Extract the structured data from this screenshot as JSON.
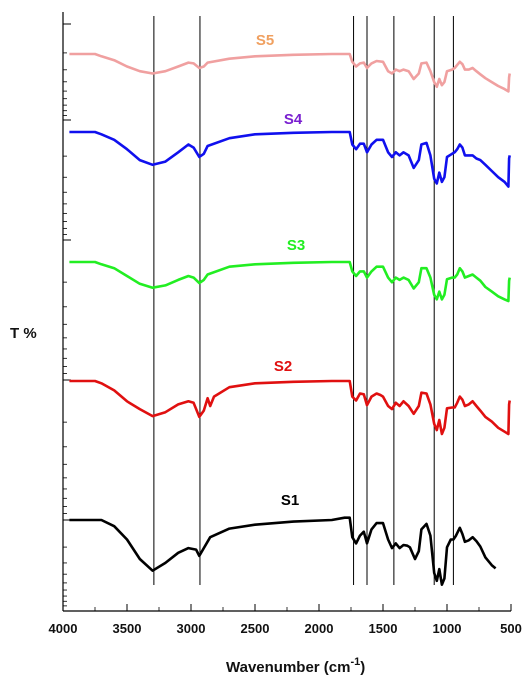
{
  "chart_data": {
    "type": "line",
    "title": "",
    "xlabel": "Wavenumber (cm",
    "xlabel_sup": "-1",
    "xlabel_close": ")",
    "ylabel": "T %",
    "xlim": [
      4000,
      500
    ],
    "x_ticks": [
      4000,
      3500,
      3000,
      2500,
      2000,
      1500,
      1000,
      500
    ],
    "x_tick_labels": [
      "4000",
      "3500",
      "3000",
      "2500",
      "2000",
      "1500",
      "1000",
      "500"
    ],
    "y_axis": "stacked transmittance, no numeric tick labels",
    "reference_lines": [
      3290,
      2930,
      1730,
      1625,
      1415,
      1100,
      950
    ],
    "series": [
      {
        "name": "S1",
        "color": "#000000",
        "offset": 0,
        "points": [
          [
            3950,
            0
          ],
          [
            3700,
            0
          ],
          [
            3600,
            -0.8
          ],
          [
            3500,
            -2.5
          ],
          [
            3400,
            -5
          ],
          [
            3300,
            -6.5
          ],
          [
            3200,
            -5.5
          ],
          [
            3100,
            -4.2
          ],
          [
            3020,
            -3.6
          ],
          [
            2960,
            -3.8
          ],
          [
            2935,
            -4.6
          ],
          [
            2900,
            -3.6
          ],
          [
            2850,
            -2.2
          ],
          [
            2700,
            -1.1
          ],
          [
            2500,
            -0.6
          ],
          [
            2200,
            -0.2
          ],
          [
            1900,
            0
          ],
          [
            1800,
            0.3
          ],
          [
            1760,
            0.3
          ],
          [
            1740,
            -2.2
          ],
          [
            1710,
            -3
          ],
          [
            1680,
            -2
          ],
          [
            1650,
            -1.5
          ],
          [
            1625,
            -3
          ],
          [
            1590,
            -1.2
          ],
          [
            1550,
            -0.4
          ],
          [
            1500,
            -0.4
          ],
          [
            1460,
            -2.5
          ],
          [
            1430,
            -3.6
          ],
          [
            1400,
            -3
          ],
          [
            1370,
            -3.6
          ],
          [
            1340,
            -3.2
          ],
          [
            1310,
            -3.3
          ],
          [
            1290,
            -3.5
          ],
          [
            1250,
            -5
          ],
          [
            1220,
            -4
          ],
          [
            1200,
            -1.2
          ],
          [
            1160,
            -0.5
          ],
          [
            1130,
            -2
          ],
          [
            1100,
            -6.8
          ],
          [
            1080,
            -7.8
          ],
          [
            1060,
            -6.3
          ],
          [
            1040,
            -8.3
          ],
          [
            1020,
            -7.5
          ],
          [
            1000,
            -3.5
          ],
          [
            970,
            -2.5
          ],
          [
            950,
            -2.5
          ],
          [
            930,
            -2
          ],
          [
            900,
            -1
          ],
          [
            880,
            -1.8
          ],
          [
            860,
            -2.8
          ],
          [
            830,
            -2.6
          ],
          [
            800,
            -2.2
          ],
          [
            770,
            -2.7
          ],
          [
            740,
            -3.4
          ],
          [
            700,
            -4.8
          ],
          [
            650,
            -5.8
          ],
          [
            620,
            -6.2
          ]
        ]
      },
      {
        "name": "S2",
        "color": "#e01010",
        "offset": 1,
        "points": [
          [
            3950,
            0
          ],
          [
            3750,
            0
          ],
          [
            3700,
            -0.3
          ],
          [
            3600,
            -1.2
          ],
          [
            3500,
            -2.6
          ],
          [
            3400,
            -3.6
          ],
          [
            3300,
            -4.5
          ],
          [
            3200,
            -4
          ],
          [
            3100,
            -3
          ],
          [
            3020,
            -2.6
          ],
          [
            2980,
            -2.8
          ],
          [
            2935,
            -4.6
          ],
          [
            2900,
            -3.8
          ],
          [
            2870,
            -2.2
          ],
          [
            2850,
            -3.2
          ],
          [
            2820,
            -2
          ],
          [
            2700,
            -0.8
          ],
          [
            2500,
            -0.3
          ],
          [
            2200,
            -0.1
          ],
          [
            1900,
            0
          ],
          [
            1800,
            0
          ],
          [
            1760,
            0
          ],
          [
            1740,
            -2
          ],
          [
            1710,
            -2.5
          ],
          [
            1680,
            -1.6
          ],
          [
            1650,
            -1.7
          ],
          [
            1625,
            -3.1
          ],
          [
            1590,
            -2
          ],
          [
            1550,
            -1.6
          ],
          [
            1520,
            -1.8
          ],
          [
            1500,
            -2
          ],
          [
            1460,
            -3.2
          ],
          [
            1430,
            -3.6
          ],
          [
            1400,
            -2.8
          ],
          [
            1370,
            -3.2
          ],
          [
            1340,
            -2.6
          ],
          [
            1300,
            -3.2
          ],
          [
            1260,
            -4.2
          ],
          [
            1220,
            -3.2
          ],
          [
            1200,
            -1.5
          ],
          [
            1160,
            -1.6
          ],
          [
            1130,
            -3
          ],
          [
            1100,
            -5.5
          ],
          [
            1080,
            -6.3
          ],
          [
            1060,
            -5
          ],
          [
            1040,
            -6.8
          ],
          [
            1020,
            -6
          ],
          [
            1000,
            -3.5
          ],
          [
            960,
            -3.4
          ],
          [
            940,
            -3.4
          ],
          [
            920,
            -2.8
          ],
          [
            900,
            -2
          ],
          [
            880,
            -2.4
          ],
          [
            860,
            -3.2
          ],
          [
            830,
            -3
          ],
          [
            800,
            -2.6
          ],
          [
            770,
            -3.2
          ],
          [
            740,
            -3.8
          ],
          [
            700,
            -4.6
          ],
          [
            650,
            -5.2
          ],
          [
            600,
            -6
          ],
          [
            550,
            -6.5
          ],
          [
            520,
            -6.8
          ],
          [
            515,
            -3
          ],
          [
            510,
            -2.5
          ]
        ]
      },
      {
        "name": "S3",
        "color": "#22ee22",
        "offset": 2,
        "points": [
          [
            3950,
            0
          ],
          [
            3750,
            0
          ],
          [
            3700,
            -0.3
          ],
          [
            3600,
            -0.8
          ],
          [
            3500,
            -1.8
          ],
          [
            3400,
            -2.8
          ],
          [
            3300,
            -3.3
          ],
          [
            3200,
            -3
          ],
          [
            3100,
            -2.3
          ],
          [
            3020,
            -1.8
          ],
          [
            2980,
            -2
          ],
          [
            2935,
            -2.7
          ],
          [
            2900,
            -2.3
          ],
          [
            2870,
            -1.6
          ],
          [
            2700,
            -0.6
          ],
          [
            2500,
            -0.3
          ],
          [
            2200,
            -0.1
          ],
          [
            1900,
            0
          ],
          [
            1800,
            0
          ],
          [
            1760,
            0
          ],
          [
            1740,
            -1.2
          ],
          [
            1710,
            -1.8
          ],
          [
            1680,
            -1.2
          ],
          [
            1650,
            -1.2
          ],
          [
            1625,
            -2
          ],
          [
            1590,
            -1.2
          ],
          [
            1550,
            -0.6
          ],
          [
            1500,
            -0.6
          ],
          [
            1460,
            -2
          ],
          [
            1430,
            -2.6
          ],
          [
            1400,
            -2
          ],
          [
            1370,
            -2.3
          ],
          [
            1340,
            -2
          ],
          [
            1300,
            -2.3
          ],
          [
            1260,
            -3.4
          ],
          [
            1220,
            -2.6
          ],
          [
            1200,
            -0.8
          ],
          [
            1160,
            -0.8
          ],
          [
            1130,
            -2
          ],
          [
            1100,
            -4.2
          ],
          [
            1080,
            -4.8
          ],
          [
            1060,
            -3.8
          ],
          [
            1040,
            -4.8
          ],
          [
            1020,
            -4.2
          ],
          [
            1000,
            -2.2
          ],
          [
            960,
            -2
          ],
          [
            940,
            -2
          ],
          [
            920,
            -1.6
          ],
          [
            900,
            -0.8
          ],
          [
            880,
            -1.2
          ],
          [
            860,
            -2
          ],
          [
            830,
            -1.8
          ],
          [
            800,
            -1.6
          ],
          [
            770,
            -2
          ],
          [
            740,
            -2.4
          ],
          [
            700,
            -3.2
          ],
          [
            650,
            -3.8
          ],
          [
            600,
            -4.4
          ],
          [
            550,
            -4.8
          ],
          [
            520,
            -5
          ],
          [
            515,
            -2.4
          ],
          [
            510,
            -2
          ]
        ]
      },
      {
        "name": "S4",
        "color": "#1010ee",
        "offset": 3,
        "points": [
          [
            3950,
            0
          ],
          [
            3750,
            0
          ],
          [
            3700,
            -0.3
          ],
          [
            3600,
            -1
          ],
          [
            3500,
            -2.2
          ],
          [
            3400,
            -3.6
          ],
          [
            3300,
            -4.2
          ],
          [
            3200,
            -3.8
          ],
          [
            3100,
            -2.6
          ],
          [
            3020,
            -1.6
          ],
          [
            2980,
            -2
          ],
          [
            2935,
            -3.2
          ],
          [
            2900,
            -2.8
          ],
          [
            2870,
            -1.8
          ],
          [
            2700,
            -0.8
          ],
          [
            2500,
            -0.3
          ],
          [
            2200,
            -0.1
          ],
          [
            1900,
            0
          ],
          [
            1800,
            0
          ],
          [
            1760,
            0
          ],
          [
            1740,
            -1.6
          ],
          [
            1710,
            -2.2
          ],
          [
            1680,
            -1.5
          ],
          [
            1650,
            -1.5
          ],
          [
            1625,
            -2.6
          ],
          [
            1590,
            -1.6
          ],
          [
            1550,
            -1
          ],
          [
            1500,
            -1
          ],
          [
            1460,
            -2.6
          ],
          [
            1430,
            -3.2
          ],
          [
            1400,
            -2.6
          ],
          [
            1370,
            -3
          ],
          [
            1340,
            -2.6
          ],
          [
            1300,
            -3
          ],
          [
            1260,
            -4.6
          ],
          [
            1220,
            -3.6
          ],
          [
            1200,
            -1.6
          ],
          [
            1160,
            -1.4
          ],
          [
            1130,
            -3
          ],
          [
            1100,
            -6
          ],
          [
            1080,
            -6.6
          ],
          [
            1060,
            -5.2
          ],
          [
            1040,
            -6.4
          ],
          [
            1020,
            -5.8
          ],
          [
            1000,
            -3.2
          ],
          [
            960,
            -2.8
          ],
          [
            940,
            -2.6
          ],
          [
            920,
            -2.2
          ],
          [
            900,
            -1.6
          ],
          [
            880,
            -2
          ],
          [
            860,
            -3
          ],
          [
            830,
            -3
          ],
          [
            800,
            -3
          ],
          [
            770,
            -3.4
          ],
          [
            740,
            -3.6
          ],
          [
            700,
            -4.2
          ],
          [
            650,
            -5
          ],
          [
            600,
            -5.8
          ],
          [
            550,
            -6.4
          ],
          [
            520,
            -7
          ],
          [
            515,
            -3.4
          ],
          [
            510,
            -3
          ]
        ]
      },
      {
        "name": "S5",
        "color": "#f0a0a0",
        "offset": 4,
        "points": [
          [
            3950,
            0
          ],
          [
            3750,
            0
          ],
          [
            3700,
            -0.3
          ],
          [
            3600,
            -0.8
          ],
          [
            3500,
            -1.6
          ],
          [
            3400,
            -2.2
          ],
          [
            3300,
            -2.5
          ],
          [
            3200,
            -2.2
          ],
          [
            3100,
            -1.6
          ],
          [
            3020,
            -1.1
          ],
          [
            2980,
            -1.2
          ],
          [
            2935,
            -1.8
          ],
          [
            2900,
            -1.6
          ],
          [
            2870,
            -1.1
          ],
          [
            2700,
            -0.6
          ],
          [
            2500,
            -0.3
          ],
          [
            2200,
            -0.1
          ],
          [
            1900,
            0
          ],
          [
            1800,
            0
          ],
          [
            1760,
            0
          ],
          [
            1740,
            -1
          ],
          [
            1710,
            -1.6
          ],
          [
            1680,
            -1.2
          ],
          [
            1650,
            -1.1
          ],
          [
            1625,
            -1.8
          ],
          [
            1590,
            -1.2
          ],
          [
            1550,
            -0.9
          ],
          [
            1500,
            -1
          ],
          [
            1460,
            -2.2
          ],
          [
            1430,
            -2.5
          ],
          [
            1400,
            -2
          ],
          [
            1370,
            -2.2
          ],
          [
            1340,
            -2
          ],
          [
            1300,
            -2.2
          ],
          [
            1260,
            -3.2
          ],
          [
            1220,
            -2.5
          ],
          [
            1200,
            -1.2
          ],
          [
            1160,
            -1.1
          ],
          [
            1130,
            -2.2
          ],
          [
            1100,
            -3.6
          ],
          [
            1080,
            -4.2
          ],
          [
            1060,
            -3.2
          ],
          [
            1040,
            -4
          ],
          [
            1020,
            -3.6
          ],
          [
            1000,
            -2.2
          ],
          [
            960,
            -2
          ],
          [
            940,
            -1.8
          ],
          [
            920,
            -1.4
          ],
          [
            900,
            -1
          ],
          [
            880,
            -1.3
          ],
          [
            860,
            -2
          ],
          [
            830,
            -2
          ],
          [
            800,
            -1.8
          ],
          [
            770,
            -2.2
          ],
          [
            740,
            -2.6
          ],
          [
            700,
            -3.1
          ],
          [
            650,
            -3.6
          ],
          [
            600,
            -4.1
          ],
          [
            550,
            -4.5
          ],
          [
            520,
            -4.8
          ],
          [
            515,
            -3
          ],
          [
            510,
            -2.5
          ]
        ]
      }
    ]
  }
}
